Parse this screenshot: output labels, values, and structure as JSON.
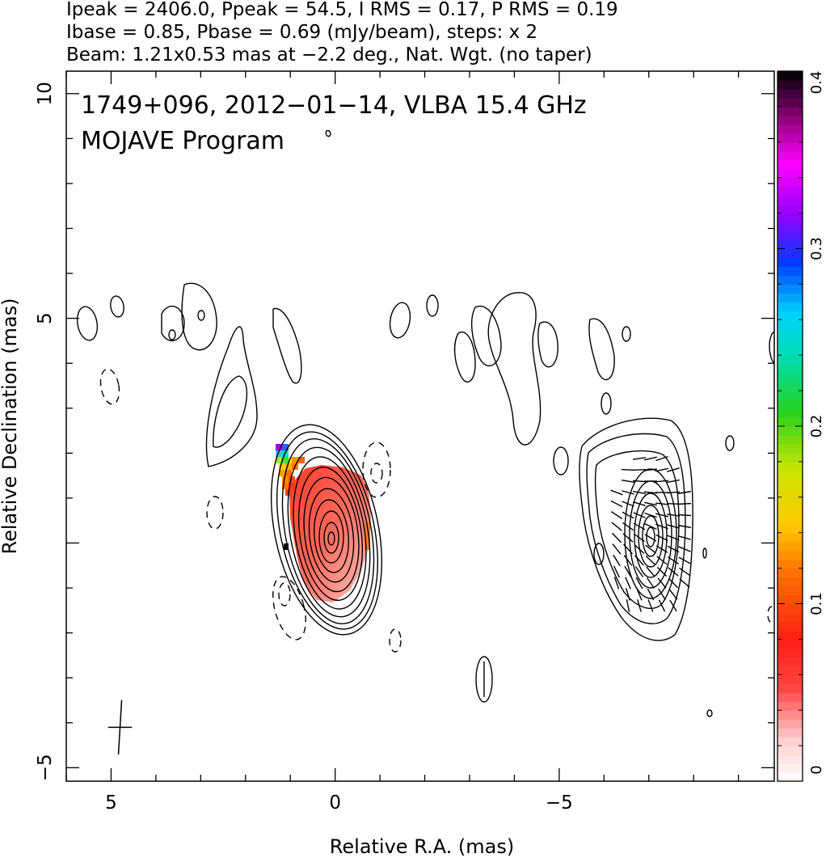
{
  "header": {
    "line1": "Ipeak = 2406.0, Ppeak = 54.5, I RMS = 0.17, P RMS = 0.19",
    "line2": "Ibase = 0.85, Pbase = 0.69 (mJy/beam), steps: x 2",
    "line3": "Beam: 1.21x0.53 mas at −2.2 deg., Nat. Wgt. (no taper)"
  },
  "annotations": {
    "title": "1749+096, 2012−01−14, VLBA 15.4 GHz",
    "program": "MOJAVE Program"
  },
  "chart_data": {
    "type": "contour",
    "xlabel": "Relative R.A. (mas)",
    "ylabel": "Relative Declination (mas)",
    "xlim": [
      6.0,
      -9.8
    ],
    "ylim": [
      -5.3,
      10.5
    ],
    "x_ticks": [
      5,
      0,
      -5
    ],
    "x_tick_labels": [
      "5",
      "0",
      "−5"
    ],
    "y_ticks": [
      -5,
      5,
      10
    ],
    "y_tick_labels": [
      "−5",
      "5",
      "10"
    ],
    "x_minor_step": 1,
    "y_minor_step": 1,
    "panels": [
      {
        "name": "left",
        "x_offset": 0
      },
      {
        "name": "right",
        "x_offset": -7.0
      }
    ],
    "core": {
      "x": 0.0,
      "y": 0.2
    },
    "contour_levels_mJy_per_beam": [
      0.85,
      1.7,
      3.4,
      6.8,
      13.6,
      27.2,
      54.4,
      108.8,
      217.6,
      435.2,
      870.4,
      1740.8
    ],
    "colorbar": {
      "min": 0,
      "max": 0.4,
      "ticks": [
        0,
        0.1,
        0.2,
        0.3,
        0.4
      ],
      "tick_labels": [
        "0",
        "0.1",
        "0.2",
        "0.3",
        "0.4"
      ]
    },
    "beam": {
      "major_mas": 1.21,
      "minor_mas": 0.53,
      "pa_deg": -2.2,
      "x": 4.8,
      "y": -4.1
    }
  }
}
